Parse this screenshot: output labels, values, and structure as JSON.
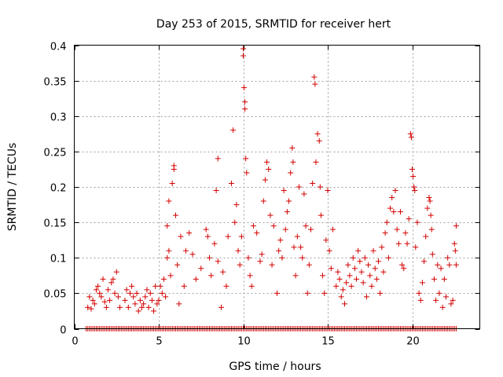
{
  "chart_data": {
    "type": "scatter",
    "title": "Day 253 of 2015, SRMTID for receiver hert",
    "xlabel": "GPS time / hours",
    "ylabel": "SRMTID / TECUs",
    "xlim": [
      0,
      24
    ],
    "ylim": [
      0,
      0.4
    ],
    "x_ticks": [
      0,
      5,
      10,
      15,
      20
    ],
    "x_tick_labels": [
      "0",
      "5",
      "10",
      "15",
      "20"
    ],
    "y_ticks": [
      0,
      0.05,
      0.1,
      0.15,
      0.2,
      0.25,
      0.3,
      0.35,
      0.4
    ],
    "y_tick_labels": [
      "0",
      "0.05",
      "0.1",
      "0.15",
      "0.2",
      "0.25",
      "0.3",
      "0.35",
      "0.4"
    ],
    "grid": true,
    "marker": "+",
    "color": "#d40000",
    "zero_band": {
      "x_start": 0.7,
      "x_end": 22.6,
      "step": 0.1,
      "y": 0
    },
    "series": [
      {
        "name": "SRMTID",
        "points": [
          [
            0.8,
            0.03
          ],
          [
            0.9,
            0.045
          ],
          [
            1.0,
            0.028
          ],
          [
            1.1,
            0.04
          ],
          [
            1.2,
            0.035
          ],
          [
            1.3,
            0.055
          ],
          [
            1.4,
            0.06
          ],
          [
            1.5,
            0.05
          ],
          [
            1.6,
            0.045
          ],
          [
            1.7,
            0.07
          ],
          [
            1.8,
            0.038
          ],
          [
            1.9,
            0.03
          ],
          [
            2.0,
            0.055
          ],
          [
            2.1,
            0.04
          ],
          [
            2.2,
            0.065
          ],
          [
            2.3,
            0.07
          ],
          [
            2.4,
            0.05
          ],
          [
            2.5,
            0.08
          ],
          [
            2.6,
            0.045
          ],
          [
            2.7,
            0.03
          ],
          [
            3.0,
            0.04
          ],
          [
            3.1,
            0.055
          ],
          [
            3.2,
            0.03
          ],
          [
            3.3,
            0.05
          ],
          [
            3.4,
            0.06
          ],
          [
            3.5,
            0.045
          ],
          [
            3.6,
            0.035
          ],
          [
            3.7,
            0.05
          ],
          [
            3.8,
            0.025
          ],
          [
            3.9,
            0.04
          ],
          [
            4.0,
            0.03
          ],
          [
            4.1,
            0.035
          ],
          [
            4.2,
            0.045
          ],
          [
            4.3,
            0.055
          ],
          [
            4.4,
            0.03
          ],
          [
            4.5,
            0.05
          ],
          [
            4.6,
            0.04
          ],
          [
            4.7,
            0.025
          ],
          [
            4.8,
            0.06
          ],
          [
            4.9,
            0.035
          ],
          [
            5.0,
            0.04
          ],
          [
            5.1,
            0.06
          ],
          [
            5.2,
            0.05
          ],
          [
            5.3,
            0.07
          ],
          [
            5.4,
            0.045
          ],
          [
            5.5,
            0.1
          ],
          [
            5.5,
            0.145
          ],
          [
            5.6,
            0.18
          ],
          [
            5.6,
            0.11
          ],
          [
            5.7,
            0.075
          ],
          [
            5.8,
            0.205
          ],
          [
            5.9,
            0.23
          ],
          [
            5.9,
            0.225
          ],
          [
            6.0,
            0.16
          ],
          [
            6.1,
            0.09
          ],
          [
            6.2,
            0.035
          ],
          [
            6.3,
            0.13
          ],
          [
            6.5,
            0.06
          ],
          [
            6.6,
            0.11
          ],
          [
            6.8,
            0.135
          ],
          [
            7.0,
            0.105
          ],
          [
            7.2,
            0.07
          ],
          [
            7.5,
            0.085
          ],
          [
            7.8,
            0.14
          ],
          [
            7.9,
            0.13
          ],
          [
            8.0,
            0.1
          ],
          [
            8.1,
            0.075
          ],
          [
            8.3,
            0.12
          ],
          [
            8.4,
            0.195
          ],
          [
            8.5,
            0.24
          ],
          [
            8.5,
            0.095
          ],
          [
            8.7,
            0.03
          ],
          [
            8.8,
            0.08
          ],
          [
            9.0,
            0.06
          ],
          [
            9.1,
            0.13
          ],
          [
            9.3,
            0.205
          ],
          [
            9.4,
            0.28
          ],
          [
            9.5,
            0.15
          ],
          [
            9.6,
            0.175
          ],
          [
            9.7,
            0.11
          ],
          [
            9.8,
            0.09
          ],
          [
            9.9,
            0.13
          ],
          [
            10.0,
            0.395
          ],
          [
            10.0,
            0.385
          ],
          [
            10.05,
            0.34
          ],
          [
            10.1,
            0.32
          ],
          [
            10.1,
            0.31
          ],
          [
            10.15,
            0.24
          ],
          [
            10.2,
            0.22
          ],
          [
            10.3,
            0.1
          ],
          [
            10.4,
            0.075
          ],
          [
            10.5,
            0.06
          ],
          [
            10.6,
            0.145
          ],
          [
            10.8,
            0.135
          ],
          [
            11.0,
            0.095
          ],
          [
            11.1,
            0.105
          ],
          [
            11.2,
            0.18
          ],
          [
            11.3,
            0.21
          ],
          [
            11.4,
            0.235
          ],
          [
            11.5,
            0.225
          ],
          [
            11.6,
            0.16
          ],
          [
            11.7,
            0.09
          ],
          [
            11.8,
            0.145
          ],
          [
            12.0,
            0.05
          ],
          [
            12.1,
            0.11
          ],
          [
            12.2,
            0.125
          ],
          [
            12.3,
            0.1
          ],
          [
            12.4,
            0.195
          ],
          [
            12.5,
            0.14
          ],
          [
            12.6,
            0.165
          ],
          [
            12.7,
            0.18
          ],
          [
            12.8,
            0.22
          ],
          [
            12.9,
            0.255
          ],
          [
            12.95,
            0.235
          ],
          [
            13.0,
            0.115
          ],
          [
            13.1,
            0.075
          ],
          [
            13.2,
            0.13
          ],
          [
            13.3,
            0.2
          ],
          [
            13.4,
            0.115
          ],
          [
            13.5,
            0.1
          ],
          [
            13.6,
            0.19
          ],
          [
            13.7,
            0.145
          ],
          [
            13.8,
            0.05
          ],
          [
            13.9,
            0.09
          ],
          [
            14.0,
            0.14
          ],
          [
            14.1,
            0.205
          ],
          [
            14.2,
            0.355
          ],
          [
            14.25,
            0.345
          ],
          [
            14.3,
            0.235
          ],
          [
            14.4,
            0.275
          ],
          [
            14.5,
            0.265
          ],
          [
            14.55,
            0.2
          ],
          [
            14.6,
            0.16
          ],
          [
            14.7,
            0.075
          ],
          [
            14.8,
            0.05
          ],
          [
            14.9,
            0.125
          ],
          [
            15.0,
            0.195
          ],
          [
            15.1,
            0.11
          ],
          [
            15.2,
            0.085
          ],
          [
            15.3,
            0.14
          ],
          [
            15.5,
            0.06
          ],
          [
            15.6,
            0.08
          ],
          [
            15.7,
            0.07
          ],
          [
            15.8,
            0.045
          ],
          [
            15.9,
            0.055
          ],
          [
            16.0,
            0.035
          ],
          [
            16.1,
            0.065
          ],
          [
            16.2,
            0.09
          ],
          [
            16.3,
            0.075
          ],
          [
            16.4,
            0.06
          ],
          [
            16.5,
            0.1
          ],
          [
            16.6,
            0.085
          ],
          [
            16.7,
            0.07
          ],
          [
            16.8,
            0.11
          ],
          [
            16.9,
            0.095
          ],
          [
            17.0,
            0.08
          ],
          [
            17.1,
            0.065
          ],
          [
            17.2,
            0.1
          ],
          [
            17.3,
            0.045
          ],
          [
            17.4,
            0.09
          ],
          [
            17.5,
            0.075
          ],
          [
            17.6,
            0.06
          ],
          [
            17.7,
            0.11
          ],
          [
            17.8,
            0.085
          ],
          [
            17.9,
            0.07
          ],
          [
            18.0,
            0.095
          ],
          [
            18.1,
            0.05
          ],
          [
            18.2,
            0.115
          ],
          [
            18.3,
            0.08
          ],
          [
            18.4,
            0.135
          ],
          [
            18.5,
            0.15
          ],
          [
            18.6,
            0.1
          ],
          [
            18.7,
            0.17
          ],
          [
            18.8,
            0.185
          ],
          [
            18.9,
            0.165
          ],
          [
            19.0,
            0.195
          ],
          [
            19.1,
            0.14
          ],
          [
            19.2,
            0.12
          ],
          [
            19.3,
            0.165
          ],
          [
            19.4,
            0.09
          ],
          [
            19.5,
            0.085
          ],
          [
            19.6,
            0.135
          ],
          [
            19.7,
            0.12
          ],
          [
            19.8,
            0.155
          ],
          [
            19.9,
            0.275
          ],
          [
            19.95,
            0.27
          ],
          [
            20.0,
            0.225
          ],
          [
            20.05,
            0.215
          ],
          [
            20.1,
            0.2
          ],
          [
            20.15,
            0.195
          ],
          [
            20.2,
            0.115
          ],
          [
            20.3,
            0.15
          ],
          [
            20.4,
            0.05
          ],
          [
            20.5,
            0.04
          ],
          [
            20.6,
            0.065
          ],
          [
            20.7,
            0.095
          ],
          [
            20.8,
            0.13
          ],
          [
            20.9,
            0.17
          ],
          [
            21.0,
            0.185
          ],
          [
            21.05,
            0.18
          ],
          [
            21.1,
            0.16
          ],
          [
            21.15,
            0.14
          ],
          [
            21.2,
            0.105
          ],
          [
            21.3,
            0.07
          ],
          [
            21.4,
            0.04
          ],
          [
            21.5,
            0.09
          ],
          [
            21.6,
            0.05
          ],
          [
            21.7,
            0.085
          ],
          [
            21.8,
            0.03
          ],
          [
            21.9,
            0.07
          ],
          [
            22.0,
            0.045
          ],
          [
            22.1,
            0.1
          ],
          [
            22.2,
            0.09
          ],
          [
            22.3,
            0.035
          ],
          [
            22.4,
            0.04
          ],
          [
            22.5,
            0.12
          ],
          [
            22.55,
            0.11
          ],
          [
            22.6,
            0.145
          ],
          [
            22.6,
            0.09
          ]
        ]
      }
    ]
  }
}
